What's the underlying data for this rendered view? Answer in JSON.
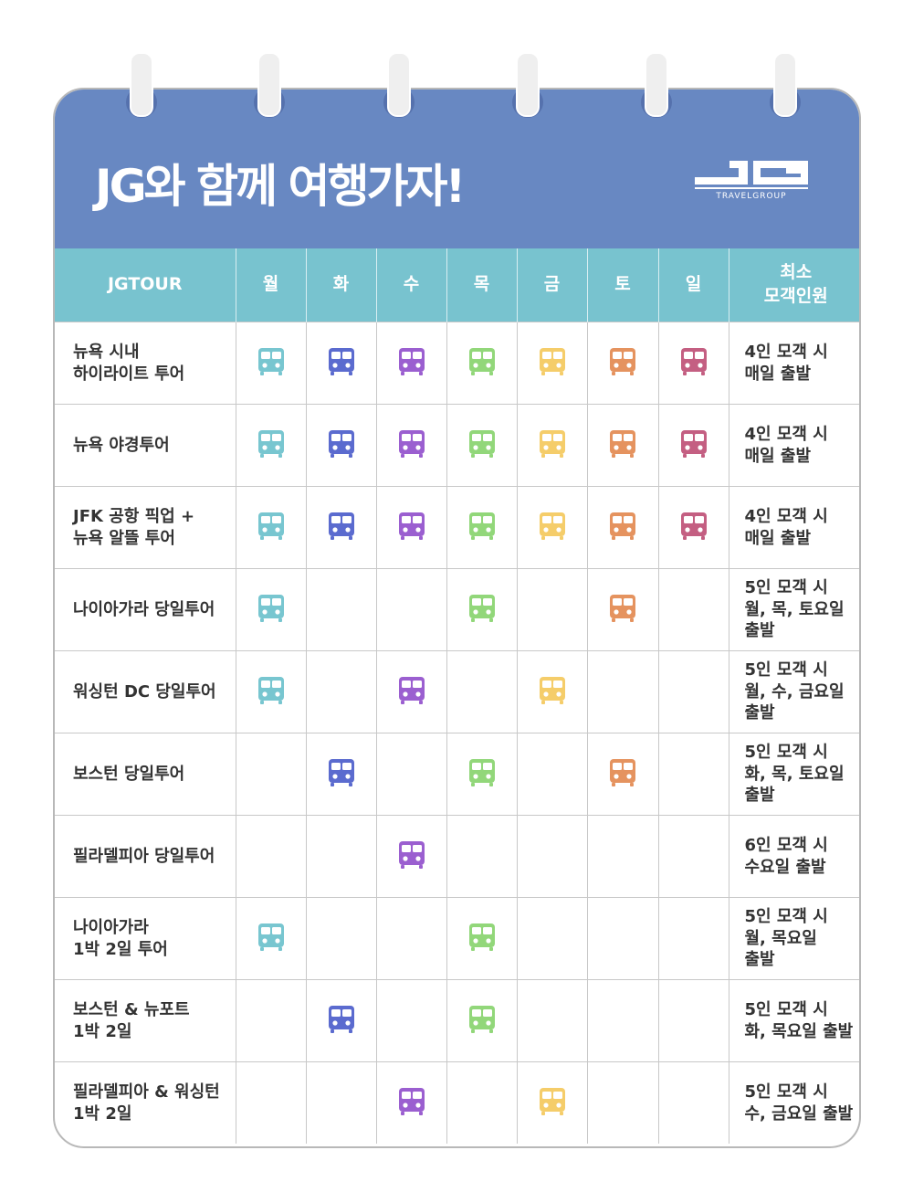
{
  "header": {
    "title": "JG와 함께 여행가자!",
    "logo_text": "JG TRAVELGROUP",
    "background": "#6888c2"
  },
  "table": {
    "columns": [
      "JGTOUR",
      "월",
      "화",
      "수",
      "목",
      "금",
      "토",
      "일",
      [
        "최소",
        "모객인원"
      ]
    ],
    "day_colors": [
      "#78c6d0",
      "#5b6bcf",
      "#9b5fd0",
      "#92d77a",
      "#f5cd6a",
      "#e5935f",
      "#c45f82"
    ],
    "rows": [
      {
        "tour": [
          "뉴욕 시내",
          "하이라이트 투어"
        ],
        "days": [
          1,
          1,
          1,
          1,
          1,
          1,
          1
        ],
        "min": [
          "4인 모객 시",
          "매일 출발"
        ]
      },
      {
        "tour": [
          "뉴욕 야경투어"
        ],
        "days": [
          1,
          1,
          1,
          1,
          1,
          1,
          1
        ],
        "min": [
          "4인 모객 시",
          "매일 출발"
        ]
      },
      {
        "tour": [
          "JFK 공항 픽업 +",
          "뉴욕 알뜰 투어"
        ],
        "days": [
          1,
          1,
          1,
          1,
          1,
          1,
          1
        ],
        "min": [
          "4인 모객 시",
          "매일 출발"
        ]
      },
      {
        "tour": [
          "나이아가라 당일투어"
        ],
        "days": [
          1,
          0,
          0,
          1,
          0,
          1,
          0
        ],
        "min": [
          "5인 모객 시",
          "월, 목, 토요일",
          "출발"
        ]
      },
      {
        "tour": [
          "워싱턴 DC 당일투어"
        ],
        "days": [
          1,
          0,
          1,
          0,
          1,
          0,
          0
        ],
        "min": [
          "5인 모객 시",
          "월, 수, 금요일",
          "출발"
        ]
      },
      {
        "tour": [
          "보스턴 당일투어"
        ],
        "days": [
          0,
          1,
          0,
          1,
          0,
          1,
          0
        ],
        "min": [
          "5인 모객 시",
          "화, 목, 토요일",
          "출발"
        ]
      },
      {
        "tour": [
          "필라델피아 당일투어"
        ],
        "days": [
          0,
          0,
          1,
          0,
          0,
          0,
          0
        ],
        "min": [
          "6인 모객 시",
          "수요일 출발"
        ]
      },
      {
        "tour": [
          "나이아가라",
          "1박 2일 투어"
        ],
        "days": [
          1,
          0,
          0,
          1,
          0,
          0,
          0
        ],
        "min": [
          "5인 모객 시",
          "월, 목요일",
          "출발"
        ]
      },
      {
        "tour": [
          "보스턴 & 뉴포트",
          "1박 2일"
        ],
        "days": [
          0,
          1,
          0,
          1,
          0,
          0,
          0
        ],
        "min": [
          "5인 모객 시",
          "화, 목요일 출발"
        ]
      },
      {
        "tour": [
          "필라델피아 & 워싱턴",
          "1박 2일"
        ],
        "days": [
          0,
          0,
          1,
          0,
          1,
          0,
          0
        ],
        "min": [
          "5인 모객 시",
          "수, 금요일 출발"
        ]
      }
    ]
  }
}
